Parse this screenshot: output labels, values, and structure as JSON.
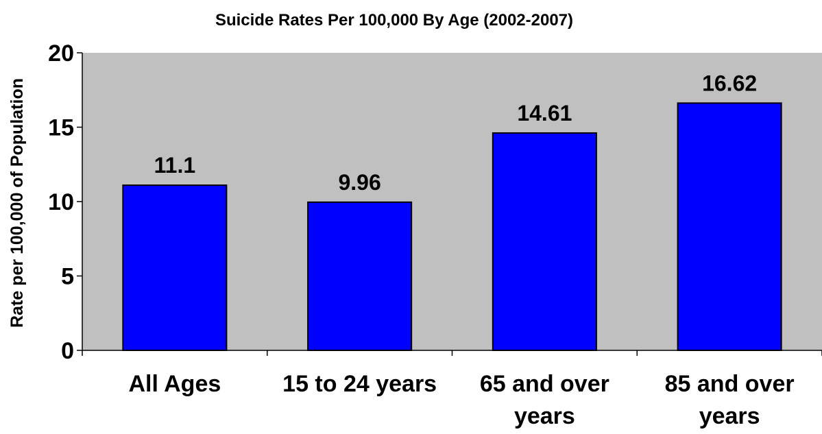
{
  "chart_data": {
    "type": "bar",
    "title": "Suicide Rates Per 100,000 By Age (2002-2007)",
    "xlabel": "",
    "ylabel": "Rate per 100,000 of Population",
    "categories": [
      [
        "All Ages"
      ],
      [
        "15 to 24 years"
      ],
      [
        "65 and over",
        "years"
      ],
      [
        "85 and over",
        "years"
      ]
    ],
    "values": [
      11.1,
      9.96,
      14.61,
      16.62
    ],
    "data_labels": [
      "11.1",
      "9.96",
      "14.61",
      "16.62"
    ],
    "ylim": [
      0,
      20
    ],
    "yticks": [
      0,
      5,
      10,
      15,
      20
    ],
    "grid": false,
    "legend": "none",
    "colors": {
      "plot_background": "#c0c0c0",
      "bar_fill": "#0000ff",
      "bar_stroke": "#000000",
      "axis": "#000000"
    }
  }
}
